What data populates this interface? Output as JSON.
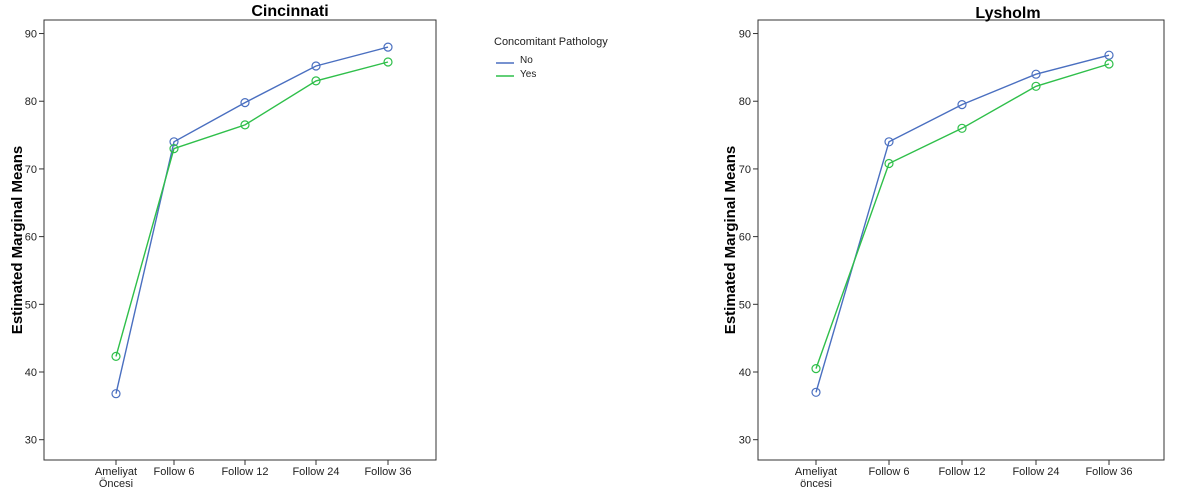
{
  "legend": {
    "title": "Concomitant Pathology",
    "items": [
      {
        "label": "No",
        "color": "#4a6fc0"
      },
      {
        "label": "Yes",
        "color": "#2fbf4a"
      }
    ]
  },
  "chart_data": [
    {
      "type": "line",
      "title": "Cincinnati",
      "xlabel": "",
      "ylabel": "Estimated Marginal Means",
      "categories": [
        [
          "Ameliyat",
          "Öncesi"
        ],
        [
          "Follow 6"
        ],
        [
          "Follow 12"
        ],
        [
          "Follow 24"
        ],
        [
          "Follow 36"
        ]
      ],
      "ylim": [
        27,
        92
      ],
      "yticks": [
        30,
        40,
        50,
        60,
        70,
        80,
        90
      ],
      "grid": false,
      "legend_position": "right",
      "series": [
        {
          "name": "No",
          "color": "#4a6fc0",
          "values": [
            36.8,
            74.0,
            79.8,
            85.2,
            88.0
          ]
        },
        {
          "name": "Yes",
          "color": "#2fbf4a",
          "values": [
            42.3,
            73.0,
            76.5,
            83.0,
            85.8
          ]
        }
      ]
    },
    {
      "type": "line",
      "title": "Lysholm",
      "xlabel": "",
      "ylabel": "Estimated Marginal Means",
      "categories": [
        [
          "Ameliyat",
          "öncesi"
        ],
        [
          "Follow 6"
        ],
        [
          "Follow 12"
        ],
        [
          "Follow 24"
        ],
        [
          "Follow 36"
        ]
      ],
      "ylim": [
        27,
        92
      ],
      "yticks": [
        30,
        40,
        50,
        60,
        70,
        80,
        90
      ],
      "grid": false,
      "series": [
        {
          "name": "No",
          "color": "#4a6fc0",
          "values": [
            37.0,
            74.0,
            79.5,
            84.0,
            86.8
          ]
        },
        {
          "name": "Yes",
          "color": "#2fbf4a",
          "values": [
            40.5,
            70.8,
            76.0,
            82.2,
            85.5
          ]
        }
      ]
    }
  ]
}
